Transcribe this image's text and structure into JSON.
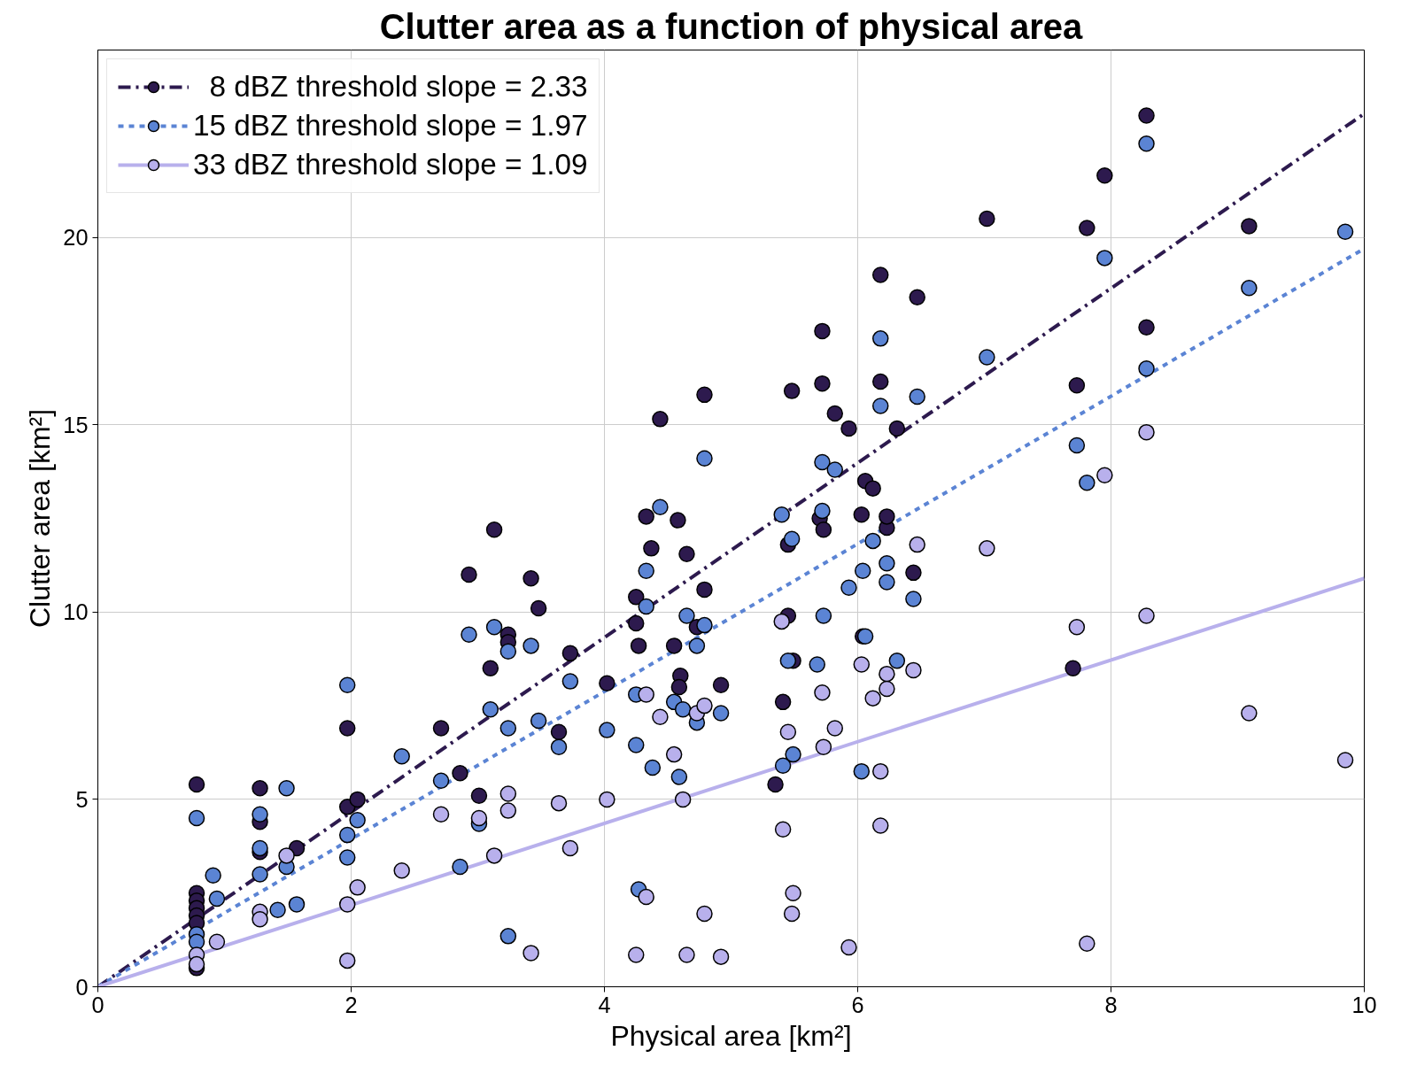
{
  "chart_data": {
    "type": "scatter",
    "title": "Clutter area as a function of physical area",
    "xlabel": "Physical area [km²]",
    "ylabel": "Clutter area [km²]",
    "xlim": [
      0,
      10
    ],
    "ylim": [
      0,
      25
    ],
    "xticks": [
      0,
      2,
      4,
      6,
      8,
      10
    ],
    "yticks": [
      0,
      5,
      10,
      15,
      20
    ],
    "grid": true,
    "legend": "top left",
    "series": [
      {
        "marker": "circle",
        "name": "  8 dBZ threshold slope = 2.33",
        "color": "#2d1a4e",
        "x": [
          0.78,
          0.78,
          0.78,
          0.78,
          0.78,
          0.78,
          0.78,
          1.28,
          1.28,
          1.28,
          1.57,
          1.97,
          1.97,
          2.05,
          2.71,
          2.86,
          2.93,
          3.01,
          3.1,
          3.13,
          3.24,
          3.24,
          3.42,
          3.48,
          3.64,
          3.73,
          4.02,
          4.25,
          4.25,
          4.27,
          4.33,
          4.37,
          4.44,
          4.55,
          4.58,
          4.6,
          4.59,
          4.65,
          4.73,
          4.79,
          4.79,
          4.92,
          5.35,
          5.41,
          5.45,
          5.45,
          5.48,
          5.49,
          5.7,
          5.72,
          5.72,
          5.73,
          5.82,
          5.93,
          6.03,
          6.04,
          6.06,
          6.12,
          6.18,
          6.18,
          6.23,
          6.23,
          6.31,
          6.44,
          6.47,
          7.02,
          7.7,
          7.73,
          7.81,
          7.95,
          8.28,
          8.28,
          9.09
        ],
        "values": [
          5.4,
          2.5,
          2.3,
          2.1,
          1.9,
          1.7,
          0.5,
          5.3,
          4.4,
          3.6,
          3.7,
          6.9,
          4.8,
          5.0,
          6.9,
          5.7,
          11.0,
          5.1,
          8.5,
          12.2,
          9.4,
          9.2,
          10.9,
          10.1,
          6.8,
          8.9,
          8.1,
          10.4,
          9.7,
          9.1,
          12.55,
          11.7,
          15.15,
          9.1,
          12.45,
          8.3,
          8.0,
          11.55,
          9.6,
          10.6,
          15.8,
          8.05,
          5.4,
          7.6,
          11.8,
          9.9,
          15.9,
          8.7,
          12.5,
          17.5,
          16.1,
          12.2,
          15.3,
          14.9,
          12.6,
          9.35,
          13.5,
          13.3,
          19.0,
          16.15,
          12.25,
          12.55,
          14.9,
          11.05,
          18.4,
          20.5,
          8.5,
          16.05,
          20.25,
          21.65,
          23.25,
          17.6,
          20.3
        ]
      },
      {
        "type": "line",
        "color": "#2d1a4e",
        "marker": "none",
        "line_style": "dashdot",
        "x": [
          0,
          10
        ],
        "values": [
          0,
          23.3
        ]
      },
      {
        "marker": "circle",
        "name": "15 dBZ threshold slope = 1.97",
        "color": "#5b84d4",
        "x": [
          0.78,
          0.78,
          0.78,
          0.91,
          0.94,
          1.28,
          1.28,
          1.28,
          1.49,
          1.49,
          1.42,
          1.57,
          1.97,
          1.97,
          1.97,
          2.05,
          2.4,
          2.71,
          2.86,
          2.93,
          3.01,
          3.1,
          3.13,
          3.24,
          3.24,
          3.24,
          3.42,
          3.48,
          3.64,
          3.73,
          4.02,
          4.25,
          4.25,
          4.27,
          4.33,
          4.33,
          4.38,
          4.44,
          4.55,
          4.59,
          4.62,
          4.65,
          4.73,
          4.73,
          4.79,
          4.79,
          4.92,
          5.4,
          5.41,
          5.45,
          5.48,
          5.49,
          5.68,
          5.72,
          5.72,
          5.73,
          5.82,
          5.93,
          6.03,
          6.04,
          6.06,
          6.12,
          6.18,
          6.18,
          6.23,
          6.23,
          6.31,
          6.44,
          6.47,
          7.02,
          7.73,
          7.81,
          7.95,
          8.28,
          8.28,
          9.09,
          9.85
        ],
        "values": [
          4.5,
          1.4,
          1.2,
          2.97,
          2.35,
          4.6,
          3.7,
          3.0,
          3.2,
          5.3,
          2.05,
          2.2,
          8.05,
          4.05,
          3.45,
          4.45,
          6.15,
          5.5,
          3.2,
          9.4,
          4.35,
          7.4,
          9.6,
          8.95,
          6.9,
          1.35,
          9.1,
          7.1,
          6.4,
          8.15,
          6.85,
          7.8,
          6.45,
          2.6,
          11.1,
          10.15,
          5.85,
          12.8,
          7.6,
          5.6,
          7.4,
          9.9,
          9.1,
          7.05,
          9.65,
          14.1,
          7.3,
          12.6,
          5.9,
          8.7,
          11.95,
          6.2,
          8.6,
          14.0,
          12.7,
          9.9,
          13.8,
          10.65,
          5.75,
          11.1,
          9.35,
          11.9,
          17.3,
          15.5,
          11.3,
          10.8,
          8.7,
          10.35,
          15.75,
          16.8,
          14.45,
          13.45,
          19.45,
          22.5,
          16.5,
          18.65,
          20.15
        ]
      },
      {
        "type": "line",
        "color": "#5b84d4",
        "marker": "none",
        "line_style": "dashed",
        "x": [
          0,
          10
        ],
        "values": [
          0,
          19.7
        ]
      },
      {
        "marker": "circle",
        "name": "33 dBZ threshold slope = 1.09",
        "color": "#b8b0ec",
        "x": [
          0.78,
          0.78,
          0.94,
          1.28,
          1.28,
          1.49,
          1.97,
          1.97,
          2.05,
          2.4,
          2.71,
          3.01,
          3.13,
          3.24,
          3.24,
          3.42,
          3.64,
          3.73,
          4.02,
          4.25,
          4.33,
          4.33,
          4.44,
          4.55,
          4.62,
          4.65,
          4.73,
          4.79,
          4.79,
          4.92,
          5.4,
          5.41,
          5.45,
          5.48,
          5.49,
          5.72,
          5.73,
          5.82,
          5.93,
          6.03,
          6.12,
          6.18,
          6.18,
          6.23,
          6.23,
          6.44,
          6.47,
          7.02,
          7.73,
          7.81,
          7.95,
          8.28,
          8.28,
          9.09,
          9.85
        ],
        "values": [
          0.85,
          0.6,
          1.2,
          2.0,
          1.8,
          3.5,
          2.2,
          0.7,
          2.65,
          3.1,
          4.6,
          4.5,
          3.5,
          5.15,
          4.7,
          0.9,
          4.9,
          3.7,
          5.0,
          0.85,
          7.8,
          2.4,
          7.2,
          6.2,
          5.0,
          0.85,
          7.3,
          7.5,
          1.95,
          0.8,
          9.75,
          4.2,
          6.8,
          1.95,
          2.5,
          7.85,
          6.4,
          6.9,
          1.05,
          8.6,
          7.7,
          5.75,
          4.3,
          8.35,
          7.95,
          8.45,
          11.8,
          11.7,
          9.6,
          1.15,
          13.65,
          14.8,
          9.9,
          7.3,
          6.05
        ]
      },
      {
        "type": "line",
        "color": "#b8b0ec",
        "marker": "none",
        "line_style": "solid",
        "x": [
          0,
          10
        ],
        "values": [
          0,
          10.9
        ]
      }
    ]
  }
}
